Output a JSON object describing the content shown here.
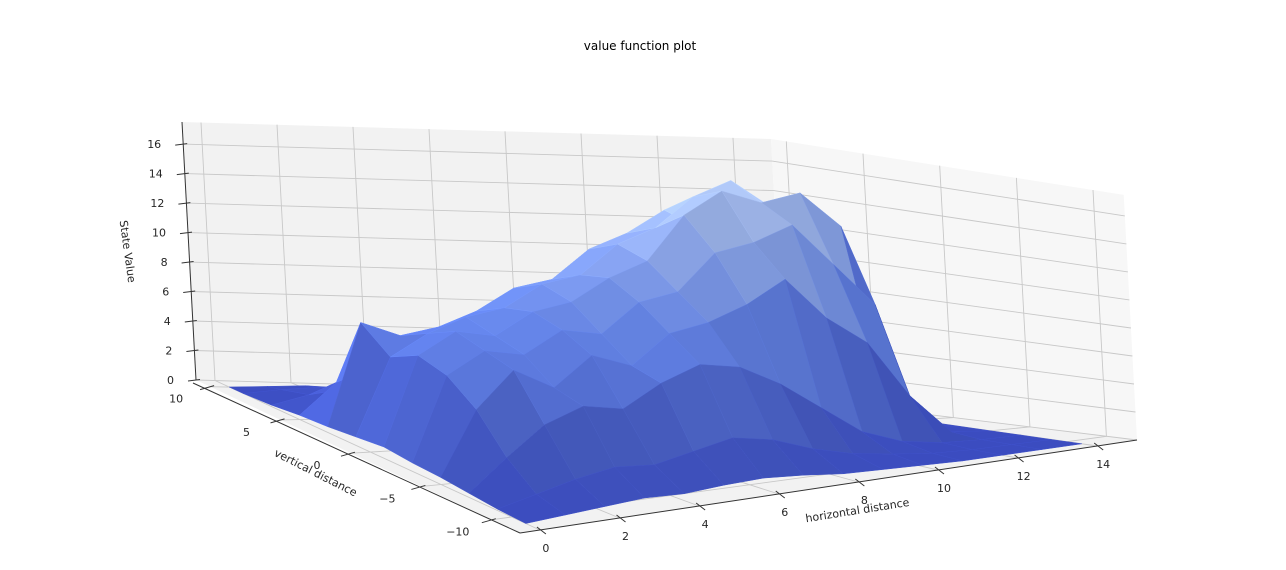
{
  "chart_data": {
    "type": "surface3d",
    "title": "value function plot",
    "xlabel": "horizontal distance",
    "ylabel": "vertical distance",
    "zlabel": "State Value",
    "xlim": [
      -0.5,
      15
    ],
    "ylim": [
      -12,
      11
    ],
    "zlim": [
      0,
      17.5
    ],
    "xticks": [
      0,
      2,
      4,
      6,
      8,
      10,
      12,
      14
    ],
    "yticks": [
      10,
      5,
      0,
      -5,
      -10
    ],
    "yticks_display": [
      "10",
      "5",
      "0",
      "−5",
      "−10"
    ],
    "zticks": [
      0,
      2,
      4,
      6,
      8,
      10,
      12,
      14,
      16
    ],
    "grid": true,
    "colormap": "coolwarm (low range)",
    "surface_colors": {
      "low": "#3b4cc0",
      "mid": "#6788ee",
      "high": "#b6cdfa"
    },
    "pane_color": "#f2f2f2",
    "grid_color": "#c8c8c8",
    "x_grid": [
      0,
      1,
      2,
      3,
      4,
      5,
      6,
      7,
      8,
      9,
      10,
      11,
      12,
      13,
      14
    ],
    "y_grid": [
      -11,
      -9,
      -7,
      -5,
      -3,
      -1,
      1,
      3,
      5,
      7,
      9,
      10
    ],
    "z_values_note": "rows indexed by y_grid (low to high), cols by x_grid; approximate read-off from rendered surface",
    "z_values": [
      [
        0.0,
        0.2,
        0.4,
        0.6,
        0.5,
        0.7,
        0.8,
        0.6,
        0.3,
        0.2,
        0.1,
        0.0,
        0.0,
        0.0,
        0.0
      ],
      [
        0.1,
        0.8,
        1.5,
        2.0,
        1.8,
        2.4,
        3.0,
        2.5,
        1.5,
        0.8,
        0.4,
        0.1,
        0.0,
        0.0,
        0.0
      ],
      [
        0.3,
        2.5,
        4.5,
        5.5,
        5.0,
        6.5,
        7.5,
        7.0,
        5.5,
        3.5,
        1.5,
        0.5,
        0.1,
        0.0,
        0.0
      ],
      [
        0.5,
        5.0,
        7.5,
        6.0,
        8.0,
        7.0,
        9.0,
        9.5,
        10.5,
        12.0,
        9.0,
        7.0,
        3.0,
        0.2,
        0.0
      ],
      [
        0.6,
        6.5,
        8.0,
        7.5,
        9.0,
        8.5,
        10.5,
        11.0,
        13.5,
        14.0,
        15.0,
        12.0,
        9.0,
        0.3,
        0.0
      ],
      [
        0.8,
        7.0,
        8.5,
        8.0,
        9.5,
        10.0,
        11.5,
        12.5,
        15.5,
        17.0,
        16.0,
        16.5,
        14.0,
        0.4,
        0.0
      ],
      [
        0.6,
        6.0,
        7.5,
        8.5,
        9.0,
        10.5,
        11.0,
        13.0,
        14.0,
        16.0,
        17.0,
        15.0,
        13.5,
        0.3,
        0.0
      ],
      [
        0.4,
        7.5,
        6.5,
        7.0,
        8.0,
        9.5,
        10.0,
        12.0,
        13.0,
        14.5,
        13.0,
        14.0,
        12.0,
        0.2,
        0.0
      ],
      [
        0.3,
        2.5,
        3.5,
        4.0,
        5.0,
        6.0,
        7.5,
        8.0,
        9.0,
        10.0,
        9.5,
        9.0,
        7.0,
        0.1,
        0.0
      ],
      [
        0.1,
        0.8,
        1.2,
        1.5,
        1.0,
        1.5,
        2.0,
        2.5,
        2.0,
        1.5,
        1.0,
        0.5,
        0.2,
        0.0,
        0.0
      ],
      [
        0.0,
        0.3,
        0.5,
        0.4,
        0.3,
        0.4,
        0.5,
        0.4,
        0.3,
        0.2,
        0.1,
        0.0,
        0.0,
        0.0,
        0.0
      ],
      [
        0.0,
        0.1,
        0.2,
        0.1,
        0.1,
        0.1,
        0.2,
        0.1,
        0.1,
        0.0,
        0.0,
        0.0,
        0.0,
        0.0,
        0.0
      ]
    ]
  }
}
